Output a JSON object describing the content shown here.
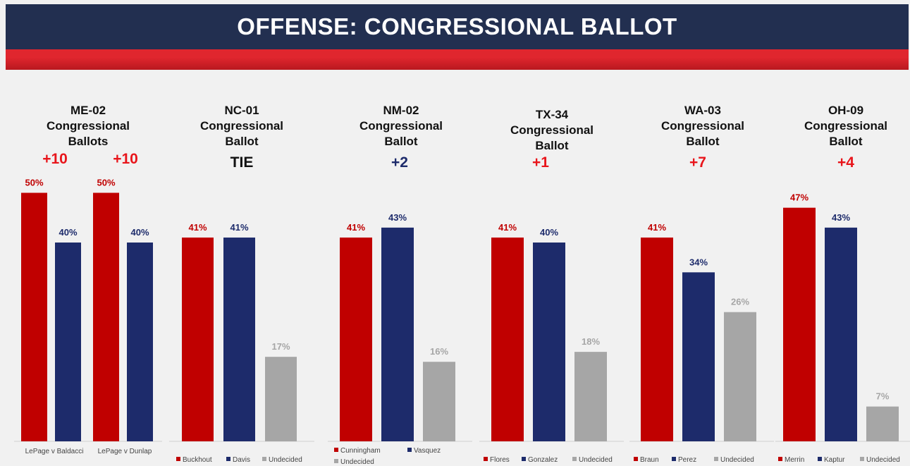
{
  "header": {
    "title": "OFFENSE: CONGRESSIONAL BALLOT"
  },
  "colors": {
    "navy": "#222f50",
    "red": "#c00000",
    "blue": "#1d2b6b",
    "gray": "#a6a6a6",
    "lead_red": "#e8151b",
    "lead_blue": "#1d2b6b"
  },
  "chart_data": [
    {
      "type": "bar",
      "title_lines": [
        "ME-02",
        "Congressional",
        "Ballots"
      ],
      "leads": [
        {
          "label": "+10",
          "color": "red"
        },
        {
          "label": "+10",
          "color": "red"
        }
      ],
      "categories": [
        "LePage v Baldacci",
        "LePage v Dunlap"
      ],
      "series": [
        {
          "color": "red",
          "values": [
            50,
            50
          ]
        },
        {
          "color": "blue",
          "values": [
            40,
            40
          ]
        }
      ],
      "value_labels": [
        "50%",
        "40%",
        "50%",
        "40%"
      ],
      "ylim": [
        0,
        55
      ]
    },
    {
      "type": "bar",
      "title_lines": [
        "NC-01",
        "Congressional",
        "Ballot"
      ],
      "leads": [
        {
          "label": "TIE",
          "color": "black"
        }
      ],
      "categories": [
        ""
      ],
      "series": [
        {
          "name": "Buckhout",
          "color": "red",
          "values": [
            41
          ]
        },
        {
          "name": "Davis",
          "color": "blue",
          "values": [
            41
          ]
        },
        {
          "name": "Undecided",
          "color": "gray",
          "values": [
            17
          ]
        }
      ],
      "value_labels": [
        "41%",
        "41%",
        "17%"
      ],
      "legend": "bottom",
      "ylim": [
        0,
        55
      ]
    },
    {
      "type": "bar",
      "title_lines": [
        "NM-02",
        "Congressional",
        "Ballot"
      ],
      "leads": [
        {
          "label": "+2",
          "color": "blue"
        }
      ],
      "categories": [
        ""
      ],
      "series": [
        {
          "name": "Cunningham",
          "color": "red",
          "values": [
            41
          ]
        },
        {
          "name": "Vasquez",
          "color": "blue",
          "values": [
            43
          ]
        },
        {
          "name": "Undecided",
          "color": "gray",
          "values": [
            16
          ]
        }
      ],
      "value_labels": [
        "41%",
        "43%",
        "16%"
      ],
      "legend": "bottom",
      "ylim": [
        0,
        55
      ]
    },
    {
      "type": "bar",
      "title_lines": [
        "TX-34",
        "Congressional",
        "Ballot"
      ],
      "leads": [
        {
          "label": "+1",
          "color": "red"
        }
      ],
      "categories": [
        ""
      ],
      "series": [
        {
          "name": "Flores",
          "color": "red",
          "values": [
            41
          ]
        },
        {
          "name": "Gonzalez",
          "color": "blue",
          "values": [
            40
          ]
        },
        {
          "name": "Undecided",
          "color": "gray",
          "values": [
            18
          ]
        }
      ],
      "value_labels": [
        "41%",
        "40%",
        "18%"
      ],
      "legend": "bottom",
      "ylim": [
        0,
        55
      ]
    },
    {
      "type": "bar",
      "title_lines": [
        "WA-03",
        "Congressional",
        "Ballot"
      ],
      "leads": [
        {
          "label": "+7",
          "color": "red"
        }
      ],
      "categories": [
        ""
      ],
      "series": [
        {
          "name": "Braun",
          "color": "red",
          "values": [
            41
          ]
        },
        {
          "name": "Perez",
          "color": "blue",
          "values": [
            34
          ]
        },
        {
          "name": "Undecided",
          "color": "gray",
          "values": [
            26
          ]
        }
      ],
      "value_labels": [
        "41%",
        "34%",
        "26%"
      ],
      "legend": "bottom",
      "ylim": [
        0,
        55
      ]
    },
    {
      "type": "bar",
      "title_lines": [
        "OH-09",
        "Congressional",
        "Ballot"
      ],
      "leads": [
        {
          "label": "+4",
          "color": "red"
        }
      ],
      "categories": [
        ""
      ],
      "series": [
        {
          "name": "Merrin",
          "color": "red",
          "values": [
            47
          ]
        },
        {
          "name": "Kaptur",
          "color": "blue",
          "values": [
            43
          ]
        },
        {
          "name": "Undecided",
          "color": "gray",
          "values": [
            7
          ]
        }
      ],
      "value_labels": [
        "47%",
        "43%",
        "7%"
      ],
      "legend": "bottom",
      "ylim": [
        0,
        55
      ]
    }
  ]
}
